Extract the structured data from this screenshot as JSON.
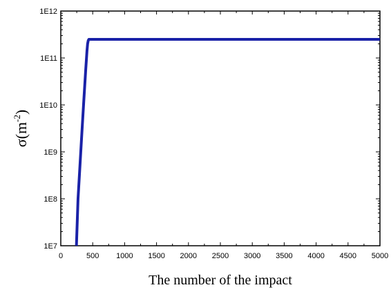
{
  "chart_data": {
    "type": "line",
    "xlabel": "The number of the impact",
    "ylabel": {
      "base": "σ(m",
      "sup": "-2",
      "close": ")"
    },
    "xlim": [
      0,
      5000
    ],
    "ylim": [
      10000000.0,
      1000000000000.0
    ],
    "yscale": "log",
    "x_ticks": [
      0,
      500,
      1000,
      1500,
      2000,
      2500,
      3000,
      3500,
      4000,
      4500,
      5000
    ],
    "x_tick_labels": [
      "0",
      "500",
      "1000",
      "1500",
      "2000",
      "2500",
      "3000",
      "3500",
      "4000",
      "4500",
      "5000"
    ],
    "y_ticks": [
      10000000.0,
      100000000.0,
      1000000000.0,
      10000000000.0,
      100000000000.0,
      1000000000000.0
    ],
    "y_tick_labels": [
      "1E7",
      "1E8",
      "1E9",
      "1E10",
      "1E11",
      "1E12"
    ],
    "grid": false,
    "series": [
      {
        "color": "#1a22a8",
        "x": [
          245,
          270,
          300,
          330,
          360,
          390,
          410,
          420,
          430,
          440,
          450,
          470,
          500,
          1000,
          2000,
          3000,
          4000,
          5000
        ],
        "y": [
          10000000.0,
          100000000.0,
          500000000.0,
          2500000000.0,
          12000000000.0,
          55000000000.0,
          140000000000.0,
          200000000000.0,
          235000000000.0,
          250000000000.0,
          250000000000.0,
          250000000000.0,
          250000000000.0,
          250000000000.0,
          250000000000.0,
          250000000000.0,
          250000000000.0,
          250000000000.0
        ]
      }
    ]
  }
}
